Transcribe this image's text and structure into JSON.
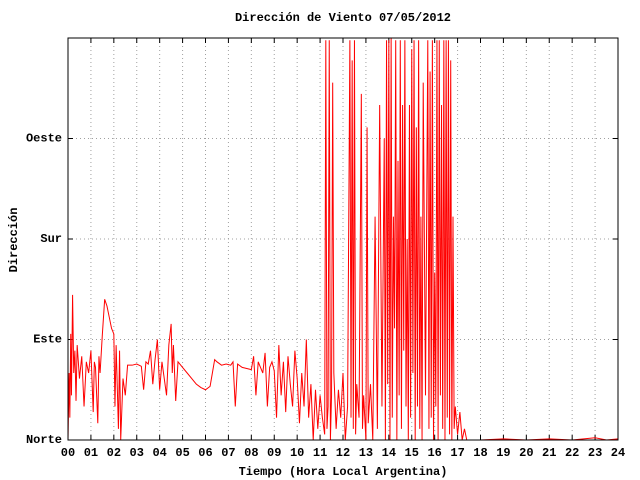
{
  "chart_data": {
    "type": "line",
    "title": "Dirección de Viento 07/05/2012",
    "x_label": "Tiempo (Hora Local Argentina)",
    "y_label": "Dirección",
    "color": "#ff0000",
    "grid": true,
    "xlim": [
      0,
      24
    ],
    "xticks": [
      {
        "value": 0,
        "label": "00"
      },
      {
        "value": 1,
        "label": "01"
      },
      {
        "value": 2,
        "label": "02"
      },
      {
        "value": 3,
        "label": "03"
      },
      {
        "value": 4,
        "label": "04"
      },
      {
        "value": 5,
        "label": "05"
      },
      {
        "value": 6,
        "label": "06"
      },
      {
        "value": 7,
        "label": "07"
      },
      {
        "value": 8,
        "label": "08"
      },
      {
        "value": 9,
        "label": "09"
      },
      {
        "value": 10,
        "label": "10"
      },
      {
        "value": 11,
        "label": "11"
      },
      {
        "value": 12,
        "label": "12"
      },
      {
        "value": 13,
        "label": "13"
      },
      {
        "value": 14,
        "label": "14"
      },
      {
        "value": 15,
        "label": "15"
      },
      {
        "value": 16,
        "label": "16"
      },
      {
        "value": 17,
        "label": "17"
      },
      {
        "value": 18,
        "label": "18"
      },
      {
        "value": 19,
        "label": "19"
      },
      {
        "value": 20,
        "label": "20"
      },
      {
        "value": 21,
        "label": "21"
      },
      {
        "value": 22,
        "label": "22"
      },
      {
        "value": 23,
        "label": "23"
      },
      {
        "value": 24,
        "label": "24"
      }
    ],
    "ylim": [
      0,
      360
    ],
    "yticks": [
      {
        "value": 0,
        "label": "Norte"
      },
      {
        "value": 90,
        "label": "Este"
      },
      {
        "value": 180,
        "label": "Sur"
      },
      {
        "value": 270,
        "label": "Oeste"
      }
    ],
    "x": [
      0,
      0.05,
      0.08,
      0.12,
      0.15,
      0.2,
      0.25,
      0.3,
      0.35,
      0.4,
      0.5,
      0.6,
      0.7,
      0.8,
      0.9,
      1.0,
      1.1,
      1.15,
      1.2,
      1.3,
      1.35,
      1.4,
      1.5,
      1.6,
      1.7,
      1.8,
      1.9,
      2.0,
      2.05,
      2.1,
      2.2,
      2.25,
      2.3,
      2.4,
      2.5,
      2.6,
      2.8,
      3.0,
      3.2,
      3.3,
      3.4,
      3.5,
      3.6,
      3.7,
      3.8,
      3.9,
      4.0,
      4.1,
      4.2,
      4.3,
      4.4,
      4.5,
      4.55,
      4.6,
      4.7,
      4.8,
      5.0,
      5.2,
      5.4,
      5.6,
      5.8,
      6.0,
      6.2,
      6.3,
      6.4,
      6.5,
      6.7,
      6.9,
      7.1,
      7.2,
      7.3,
      7.4,
      7.6,
      7.8,
      8.0,
      8.1,
      8.2,
      8.3,
      8.4,
      8.5,
      8.6,
      8.7,
      8.8,
      8.9,
      9.0,
      9.1,
      9.2,
      9.3,
      9.4,
      9.5,
      9.6,
      9.7,
      9.8,
      9.9,
      10.0,
      10.1,
      10.2,
      10.3,
      10.4,
      10.5,
      10.6,
      10.7,
      10.8,
      10.9,
      11.0,
      11.1,
      11.2,
      11.25,
      11.3,
      11.35,
      11.4,
      11.45,
      11.5,
      11.55,
      11.6,
      11.7,
      11.8,
      11.9,
      12.0,
      12.1,
      12.2,
      12.3,
      12.35,
      12.4,
      12.45,
      12.5,
      12.55,
      12.6,
      12.7,
      12.8,
      12.85,
      12.9,
      13.0,
      13.05,
      13.1,
      13.2,
      13.3,
      13.4,
      13.5,
      13.6,
      13.7,
      13.8,
      13.85,
      13.9,
      13.95,
      14.0,
      14.05,
      14.1,
      14.15,
      14.2,
      14.25,
      14.3,
      14.35,
      14.4,
      14.45,
      14.5,
      14.55,
      14.6,
      14.65,
      14.7,
      14.75,
      14.8,
      14.85,
      14.9,
      14.95,
      15.0,
      15.05,
      15.1,
      15.15,
      15.2,
      15.25,
      15.3,
      15.35,
      15.4,
      15.45,
      15.5,
      15.6,
      15.7,
      15.75,
      15.8,
      15.85,
      15.9,
      15.95,
      16.0,
      16.05,
      16.1,
      16.15,
      16.2,
      16.25,
      16.3,
      16.35,
      16.4,
      16.45,
      16.5,
      16.55,
      16.6,
      16.65,
      16.7,
      16.75,
      16.8,
      16.85,
      16.9,
      17.0,
      17.1,
      17.2,
      17.3,
      17.4,
      18.0,
      19.0,
      20.0,
      21.0,
      22.0,
      23.0,
      23.5,
      24.0
    ],
    "values": [
      0,
      60,
      20,
      95,
      40,
      130,
      60,
      80,
      35,
      85,
      55,
      75,
      30,
      70,
      60,
      80,
      25,
      70,
      65,
      15,
      75,
      60,
      95,
      126,
      120,
      110,
      100,
      95,
      30,
      85,
      10,
      80,
      0,
      55,
      40,
      67,
      67,
      68,
      66,
      45,
      70,
      68,
      80,
      50,
      72,
      90,
      45,
      70,
      55,
      40,
      85,
      104,
      60,
      85,
      35,
      70,
      65,
      60,
      55,
      50,
      47,
      45,
      48,
      60,
      72,
      70,
      67,
      68,
      67,
      70,
      30,
      68,
      65,
      64,
      63,
      75,
      40,
      70,
      65,
      60,
      78,
      30,
      65,
      70,
      62,
      20,
      85,
      40,
      70,
      25,
      75,
      50,
      30,
      80,
      55,
      15,
      60,
      30,
      90,
      20,
      50,
      0,
      45,
      10,
      40,
      20,
      5,
      358,
      10,
      30,
      358,
      0,
      40,
      320,
      60,
      10,
      45,
      20,
      60,
      0,
      30,
      358,
      20,
      340,
      10,
      358,
      5,
      50,
      20,
      310,
      10,
      40,
      0,
      280,
      15,
      50,
      0,
      200,
      10,
      300,
      30,
      270,
      0,
      358,
      50,
      358,
      0,
      360,
      20,
      200,
      100,
      358,
      0,
      250,
      40,
      358,
      10,
      300,
      80,
      358,
      30,
      180,
      0,
      300,
      20,
      350,
      60,
      358,
      0,
      280,
      30,
      358,
      10,
      200,
      0,
      320,
      40,
      358,
      10,
      330,
      20,
      358,
      0,
      150,
      30,
      358,
      0,
      358,
      40,
      300,
      10,
      358,
      0,
      358,
      20,
      358,
      5,
      340,
      0,
      200,
      10,
      30,
      5,
      25,
      0,
      10,
      0,
      0,
      1,
      0,
      1,
      0,
      2,
      0,
      1
    ]
  }
}
